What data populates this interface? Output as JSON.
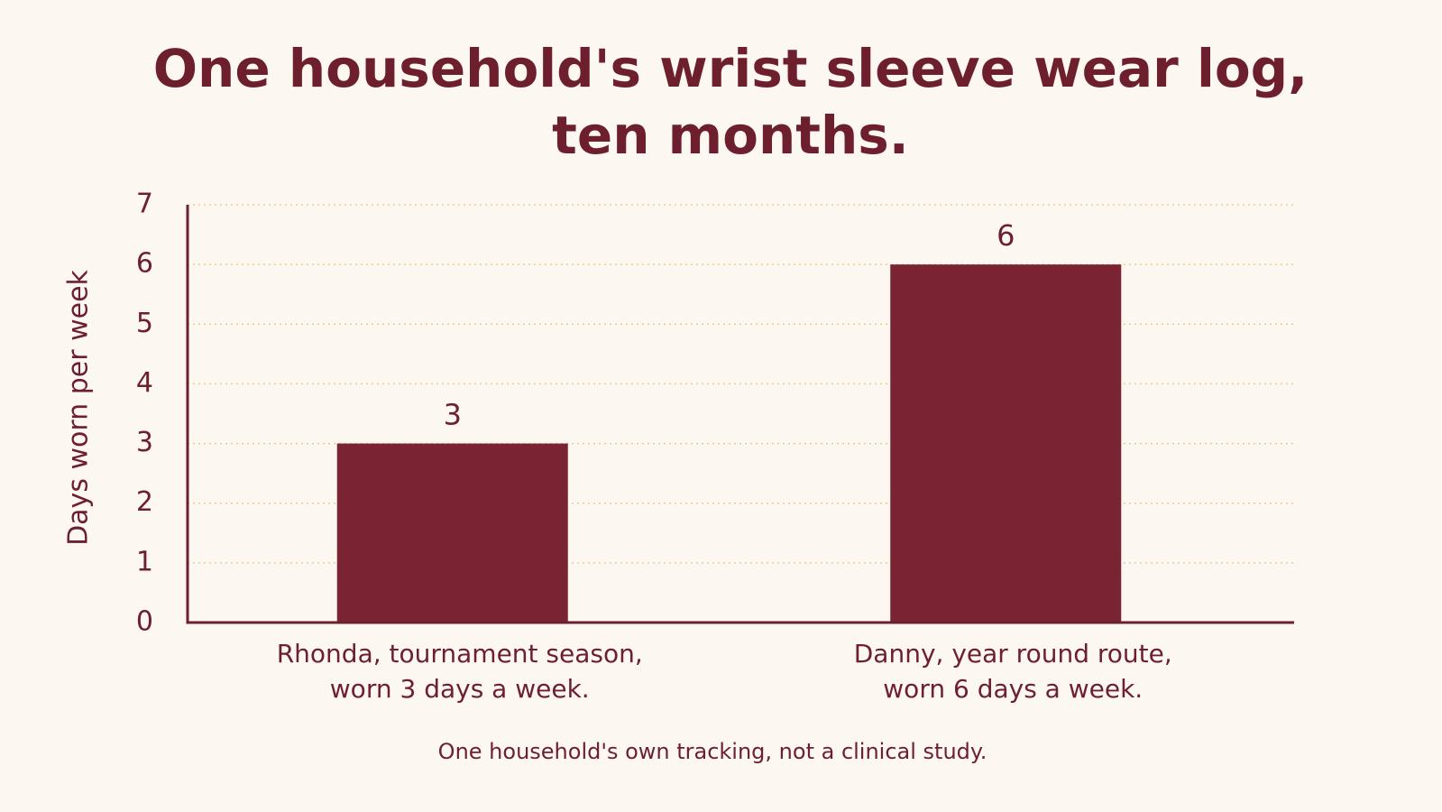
{
  "chart_data": {
    "type": "bar",
    "title": "One household's wrist sleeve wear log, ten months.",
    "y_label": "Days worn per week",
    "categories": [
      "Rhonda, tournament season, worn 3 days a week.",
      "Danny, year round route, worn 6 days a week."
    ],
    "values": [
      3,
      6
    ],
    "color": "#7a2333",
    "ylim": [
      0,
      7
    ],
    "yticks": [
      0,
      1,
      2,
      3,
      4,
      5,
      6,
      7
    ],
    "grid": true,
    "note": "One household's own tracking, not a clinical study."
  }
}
